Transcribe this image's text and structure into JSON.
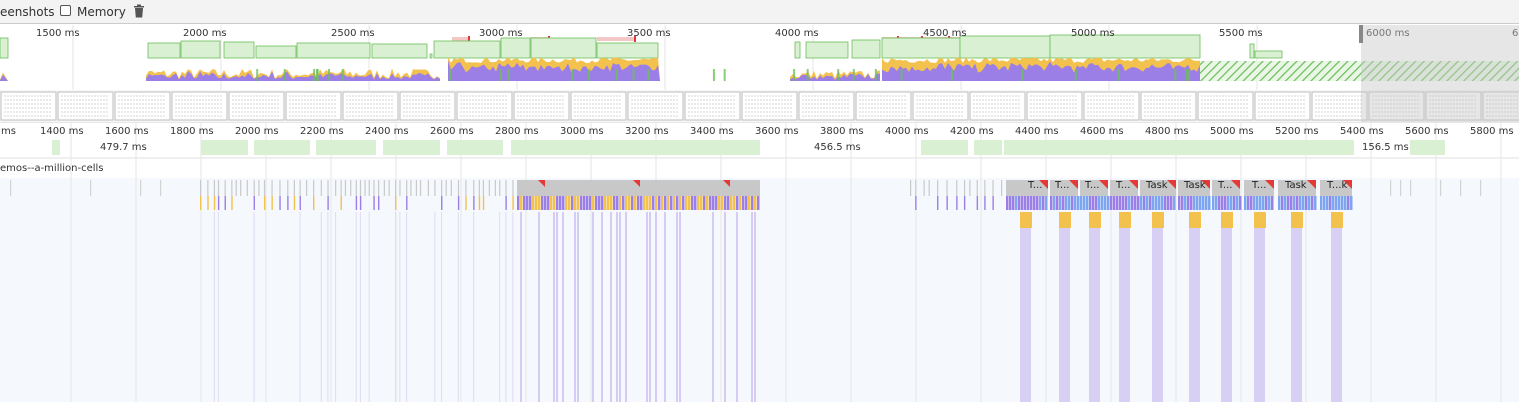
{
  "toolbar": {
    "screenshots_label": "eenshots",
    "memory_label": "Memory"
  },
  "overview_ticks": [
    "1500 ms",
    "2000 ms",
    "2500 ms",
    "3000 ms",
    "3500 ms",
    "4000 ms",
    "4500 ms",
    "5000 ms",
    "5500 ms",
    "6000 ms",
    "6"
  ],
  "timeline_ticks": [
    "ms",
    "1400 ms",
    "1600 ms",
    "1800 ms",
    "2000 ms",
    "2200 ms",
    "2400 ms",
    "2600 ms",
    "2800 ms",
    "3000 ms",
    "3200 ms",
    "3400 ms",
    "3600 ms",
    "3800 ms",
    "4000 ms",
    "4200 ms",
    "4400 ms",
    "4600 ms",
    "4800 ms",
    "5000 ms",
    "5200 ms",
    "5400 ms",
    "5600 ms",
    "5800 ms"
  ],
  "frame_labels": [
    "479.7 ms",
    "456.5 ms",
    "156.5 ms"
  ],
  "track": {
    "label": "emos--a-million-cells"
  },
  "task_labels": [
    "T...",
    "T...",
    "T...",
    "T...",
    "Task",
    "Task",
    "T...",
    "T...",
    "Task",
    "T...k"
  ],
  "colors": {
    "scripting": "#9b7fe6",
    "rendering": "#f2c14e",
    "painting": "#6bbf59",
    "fps": "#d9f0d3",
    "task": "#c8c8c8",
    "long_task": "#e53935",
    "selection_mask": "#e6e6e6"
  }
}
